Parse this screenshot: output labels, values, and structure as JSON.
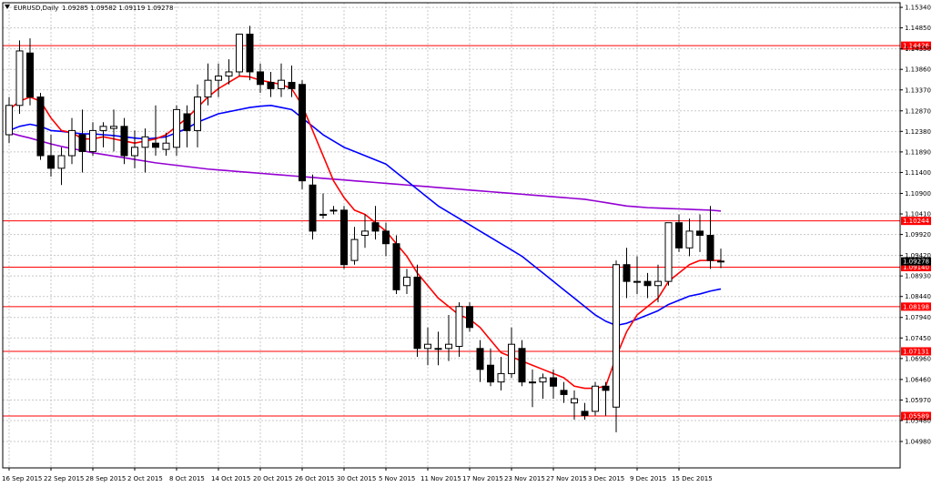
{
  "header": {
    "symbol_label": "EURUSD,Daily",
    "ohlc_label": "1.09285 1.09582 1.09119 1.09278"
  },
  "colors": {
    "background": "#ffffff",
    "grid": "#c8c8c8",
    "bull_body": "#ffffff",
    "bear_body": "#000000",
    "candle_outline": "#000000",
    "ma_fast": "#ff0000",
    "ma_medium": "#0000ff",
    "ma_slow": "#9400d3",
    "level_line": "#ff0000",
    "level_label_bg": "#ff0000",
    "price_label_bg": "#000000"
  },
  "chart_data": {
    "type": "candlestick",
    "symbol": "EURUSD",
    "timeframe": "Daily",
    "ylim": [
      1.0435,
      1.1545
    ],
    "y_ticks": [
      "1.15340",
      "1.14850",
      "1.14350",
      "1.13860",
      "1.13370",
      "1.12870",
      "1.12380",
      "1.11890",
      "1.11400",
      "1.10900",
      "1.10410",
      "1.09920",
      "1.09420",
      "1.08930",
      "1.08440",
      "1.07940",
      "1.07450",
      "1.06960",
      "1.06460",
      "1.05970",
      "1.05480",
      "1.04980"
    ],
    "x_ticks": [
      "16 Sep 2015",
      "22 Sep 2015",
      "28 Sep 2015",
      "2 Oct 2015",
      "8 Oct 2015",
      "14 Oct 2015",
      "20 Oct 2015",
      "26 Oct 2015",
      "30 Oct 2015",
      "5 Nov 2015",
      "11 Nov 2015",
      "17 Nov 2015",
      "23 Nov 2015",
      "27 Nov 2015",
      "3 Dec 2015",
      "9 Dec 2015",
      "15 Dec 2015"
    ],
    "x_tick_index": [
      0,
      4,
      8,
      12,
      16,
      20,
      24,
      28,
      32,
      36,
      40,
      44,
      48,
      52,
      56,
      60,
      64
    ],
    "levels": [
      {
        "value": 1.14426,
        "label": "1.14426"
      },
      {
        "value": 1.10244,
        "label": "1.10244"
      },
      {
        "value": 1.0914,
        "label": "1.09140"
      },
      {
        "value": 1.08198,
        "label": "1.08198"
      },
      {
        "value": 1.07131,
        "label": "1.07131"
      },
      {
        "value": 1.05589,
        "label": "1.05589"
      }
    ],
    "current_price": {
      "value": 1.09278,
      "label": "1.09278"
    },
    "candles": [
      {
        "o": 1.123,
        "h": 1.132,
        "l": 1.121,
        "c": 1.13
      },
      {
        "o": 1.13,
        "h": 1.1455,
        "l": 1.128,
        "c": 1.143
      },
      {
        "o": 1.1425,
        "h": 1.146,
        "l": 1.13,
        "c": 1.132
      },
      {
        "o": 1.132,
        "h": 1.133,
        "l": 1.117,
        "c": 1.118
      },
      {
        "o": 1.118,
        "h": 1.123,
        "l": 1.113,
        "c": 1.115
      },
      {
        "o": 1.115,
        "h": 1.12,
        "l": 1.111,
        "c": 1.118
      },
      {
        "o": 1.118,
        "h": 1.127,
        "l": 1.116,
        "c": 1.124
      },
      {
        "o": 1.123,
        "h": 1.129,
        "l": 1.114,
        "c": 1.119
      },
      {
        "o": 1.119,
        "h": 1.126,
        "l": 1.118,
        "c": 1.124
      },
      {
        "o": 1.124,
        "h": 1.126,
        "l": 1.12,
        "c": 1.125
      },
      {
        "o": 1.1245,
        "h": 1.129,
        "l": 1.119,
        "c": 1.125
      },
      {
        "o": 1.125,
        "h": 1.127,
        "l": 1.116,
        "c": 1.118
      },
      {
        "o": 1.118,
        "h": 1.124,
        "l": 1.115,
        "c": 1.12
      },
      {
        "o": 1.12,
        "h": 1.1245,
        "l": 1.114,
        "c": 1.1225
      },
      {
        "o": 1.121,
        "h": 1.13,
        "l": 1.118,
        "c": 1.12
      },
      {
        "o": 1.1195,
        "h": 1.1235,
        "l": 1.118,
        "c": 1.121
      },
      {
        "o": 1.12,
        "h": 1.13,
        "l": 1.118,
        "c": 1.129
      },
      {
        "o": 1.128,
        "h": 1.13,
        "l": 1.12,
        "c": 1.124
      },
      {
        "o": 1.124,
        "h": 1.135,
        "l": 1.12,
        "c": 1.132
      },
      {
        "o": 1.132,
        "h": 1.14,
        "l": 1.13,
        "c": 1.136
      },
      {
        "o": 1.136,
        "h": 1.14,
        "l": 1.132,
        "c": 1.137
      },
      {
        "o": 1.137,
        "h": 1.141,
        "l": 1.135,
        "c": 1.138
      },
      {
        "o": 1.138,
        "h": 1.147,
        "l": 1.137,
        "c": 1.147
      },
      {
        "o": 1.147,
        "h": 1.149,
        "l": 1.136,
        "c": 1.138
      },
      {
        "o": 1.138,
        "h": 1.14,
        "l": 1.133,
        "c": 1.135
      },
      {
        "o": 1.1355,
        "h": 1.138,
        "l": 1.132,
        "c": 1.134
      },
      {
        "o": 1.134,
        "h": 1.14,
        "l": 1.132,
        "c": 1.136
      },
      {
        "o": 1.1355,
        "h": 1.1395,
        "l": 1.132,
        "c": 1.134
      },
      {
        "o": 1.135,
        "h": 1.136,
        "l": 1.11,
        "c": 1.112
      },
      {
        "o": 1.111,
        "h": 1.1135,
        "l": 1.098,
        "c": 1.1
      },
      {
        "o": 1.104,
        "h": 1.109,
        "l": 1.103,
        "c": 1.104
      },
      {
        "o": 1.105,
        "h": 1.106,
        "l": 1.104,
        "c": 1.105
      },
      {
        "o": 1.105,
        "h": 1.106,
        "l": 1.091,
        "c": 1.092
      },
      {
        "o": 1.093,
        "h": 1.101,
        "l": 1.092,
        "c": 1.098
      },
      {
        "o": 1.099,
        "h": 1.104,
        "l": 1.096,
        "c": 1.1
      },
      {
        "o": 1.102,
        "h": 1.106,
        "l": 1.098,
        "c": 1.1
      },
      {
        "o": 1.1,
        "h": 1.102,
        "l": 1.094,
        "c": 1.097
      },
      {
        "o": 1.097,
        "h": 1.099,
        "l": 1.085,
        "c": 1.086
      },
      {
        "o": 1.087,
        "h": 1.091,
        "l": 1.085,
        "c": 1.089
      },
      {
        "o": 1.089,
        "h": 1.092,
        "l": 1.07,
        "c": 1.072
      },
      {
        "o": 1.072,
        "h": 1.077,
        "l": 1.068,
        "c": 1.073
      },
      {
        "o": 1.072,
        "h": 1.076,
        "l": 1.068,
        "c": 1.072
      },
      {
        "o": 1.072,
        "h": 1.08,
        "l": 1.069,
        "c": 1.073
      },
      {
        "o": 1.0725,
        "h": 1.083,
        "l": 1.07,
        "c": 1.082
      },
      {
        "o": 1.082,
        "h": 1.083,
        "l": 1.076,
        "c": 1.077
      },
      {
        "o": 1.072,
        "h": 1.074,
        "l": 1.064,
        "c": 1.067
      },
      {
        "o": 1.068,
        "h": 1.072,
        "l": 1.063,
        "c": 1.064
      },
      {
        "o": 1.064,
        "h": 1.07,
        "l": 1.062,
        "c": 1.066
      },
      {
        "o": 1.066,
        "h": 1.077,
        "l": 1.065,
        "c": 1.073
      },
      {
        "o": 1.072,
        "h": 1.074,
        "l": 1.063,
        "c": 1.064
      },
      {
        "o": 1.064,
        "h": 1.067,
        "l": 1.058,
        "c": 1.064
      },
      {
        "o": 1.064,
        "h": 1.066,
        "l": 1.06,
        "c": 1.065
      },
      {
        "o": 1.065,
        "h": 1.067,
        "l": 1.06,
        "c": 1.063
      },
      {
        "o": 1.062,
        "h": 1.064,
        "l": 1.059,
        "c": 1.061
      },
      {
        "o": 1.059,
        "h": 1.062,
        "l": 1.055,
        "c": 1.06
      },
      {
        "o": 1.057,
        "h": 1.059,
        "l": 1.055,
        "c": 1.056
      },
      {
        "o": 1.057,
        "h": 1.064,
        "l": 1.056,
        "c": 1.063
      },
      {
        "o": 1.063,
        "h": 1.064,
        "l": 1.056,
        "c": 1.062
      },
      {
        "o": 1.058,
        "h": 1.093,
        "l": 1.052,
        "c": 1.092
      },
      {
        "o": 1.092,
        "h": 1.096,
        "l": 1.084,
        "c": 1.088
      },
      {
        "o": 1.088,
        "h": 1.094,
        "l": 1.085,
        "c": 1.088
      },
      {
        "o": 1.088,
        "h": 1.09,
        "l": 1.084,
        "c": 1.087
      },
      {
        "o": 1.087,
        "h": 1.092,
        "l": 1.083,
        "c": 1.088
      },
      {
        "o": 1.088,
        "h": 1.102,
        "l": 1.087,
        "c": 1.102
      },
      {
        "o": 1.102,
        "h": 1.104,
        "l": 1.095,
        "c": 1.096
      },
      {
        "o": 1.096,
        "h": 1.103,
        "l": 1.094,
        "c": 1.1
      },
      {
        "o": 1.1,
        "h": 1.104,
        "l": 1.095,
        "c": 1.099
      },
      {
        "o": 1.099,
        "h": 1.106,
        "l": 1.091,
        "c": 1.093
      },
      {
        "o": 1.09285,
        "h": 1.09582,
        "l": 1.09119,
        "c": 1.09278
      }
    ],
    "ma_fast": [
      1.129,
      1.131,
      1.132,
      1.131,
      1.127,
      1.124,
      1.1235,
      1.122,
      1.122,
      1.1225,
      1.122,
      1.1215,
      1.121,
      1.1215,
      1.122,
      1.123,
      1.125,
      1.127,
      1.1295,
      1.132,
      1.134,
      1.1355,
      1.137,
      1.1368,
      1.136,
      1.1355,
      1.135,
      1.134,
      1.13,
      1.124,
      1.118,
      1.112,
      1.108,
      1.105,
      1.104,
      1.102,
      1.1,
      1.097,
      1.094,
      1.09,
      1.087,
      1.084,
      1.082,
      1.08,
      1.079,
      1.077,
      1.074,
      1.071,
      1.07,
      1.069,
      1.068,
      1.067,
      1.066,
      1.065,
      1.063,
      1.0625,
      1.0625,
      1.063,
      1.07,
      1.076,
      1.08,
      1.082,
      1.084,
      1.088,
      1.09,
      1.092,
      1.093,
      1.093,
      1.093
    ],
    "ma_medium": [
      1.124,
      1.125,
      1.1255,
      1.125,
      1.124,
      1.1238,
      1.1235,
      1.1232,
      1.1232,
      1.123,
      1.1228,
      1.1225,
      1.1222,
      1.122,
      1.1222,
      1.1225,
      1.1235,
      1.1245,
      1.126,
      1.127,
      1.128,
      1.1285,
      1.129,
      1.1295,
      1.1298,
      1.13,
      1.1295,
      1.129,
      1.127,
      1.125,
      1.123,
      1.1215,
      1.12,
      1.119,
      1.118,
      1.117,
      1.116,
      1.114,
      1.112,
      1.11,
      1.108,
      1.106,
      1.1045,
      1.103,
      1.1015,
      1.1,
      1.0985,
      1.097,
      1.0955,
      1.094,
      1.092,
      1.09,
      1.088,
      1.086,
      1.084,
      1.082,
      1.08,
      1.0785,
      1.0775,
      1.078,
      1.079,
      1.08,
      1.081,
      1.0825,
      1.0835,
      1.0845,
      1.085,
      1.0857,
      1.0862
    ],
    "ma_slow": [
      1.1235,
      1.1228,
      1.1222,
      1.1215,
      1.1208,
      1.1202,
      1.1197,
      1.1192,
      1.1187,
      1.1183,
      1.1179,
      1.1175,
      1.1171,
      1.1167,
      1.1163,
      1.116,
      1.1157,
      1.1154,
      1.1151,
      1.1148,
      1.1146,
      1.1144,
      1.1142,
      1.114,
      1.1138,
      1.1136,
      1.1134,
      1.1132,
      1.113,
      1.1128,
      1.1126,
      1.1124,
      1.1122,
      1.112,
      1.1118,
      1.1116,
      1.1114,
      1.1112,
      1.111,
      1.1108,
      1.1106,
      1.1104,
      1.1102,
      1.11,
      1.1098,
      1.1096,
      1.1094,
      1.1092,
      1.109,
      1.1088,
      1.1086,
      1.1084,
      1.1082,
      1.108,
      1.1078,
      1.1076,
      1.1072,
      1.1068,
      1.1064,
      1.106,
      1.1058,
      1.1056,
      1.1055,
      1.1054,
      1.1053,
      1.1052,
      1.1051,
      1.105,
      1.1048
    ]
  }
}
